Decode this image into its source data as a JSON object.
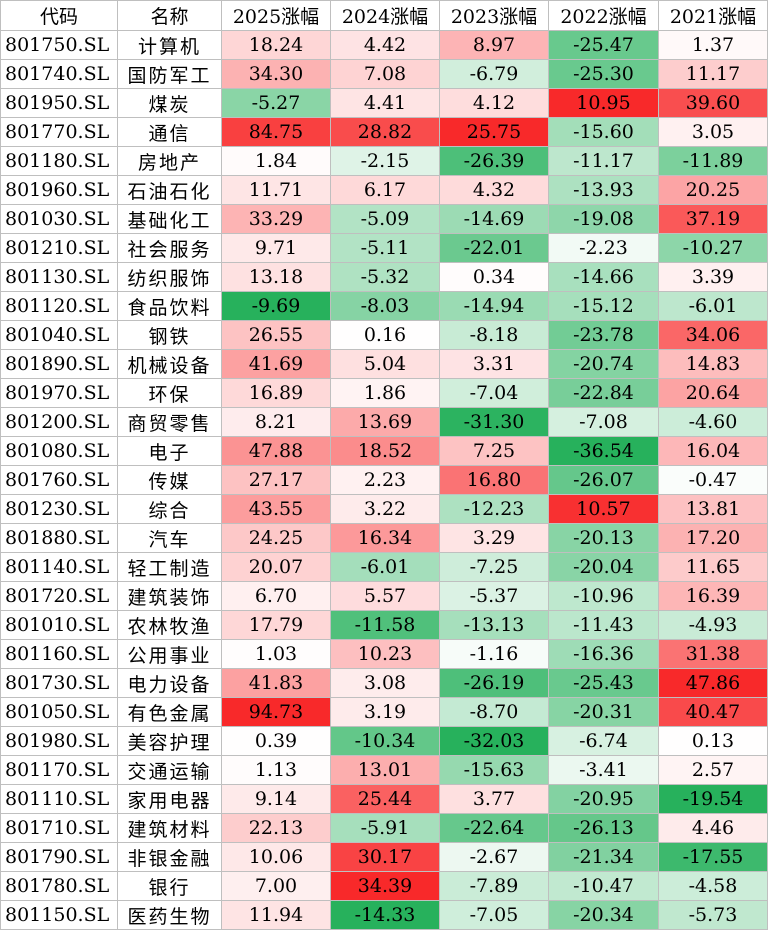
{
  "headers": [
    "代码",
    "名称",
    "2025涨幅",
    "2024涨幅",
    "2023涨幅",
    "2022涨幅",
    "2021涨幅"
  ],
  "colors": {
    "positive_max": "#f8292a",
    "negative_max": "#27b15c",
    "neutral": "#ffffff",
    "border": "#bfbfbf"
  },
  "rows": [
    {
      "code": "801750.SL",
      "name": "计算机",
      "y2025": "18.24",
      "y2024": "4.42",
      "y2023": "8.97",
      "y2022": "-25.47",
      "y2021": "1.37"
    },
    {
      "code": "801740.SL",
      "name": "国防军工",
      "y2025": "34.30",
      "y2024": "7.08",
      "y2023": "-6.79",
      "y2022": "-25.30",
      "y2021": "11.17"
    },
    {
      "code": "801950.SL",
      "name": "煤炭",
      "y2025": "-5.27",
      "y2024": "4.41",
      "y2023": "4.12",
      "y2022": "10.95",
      "y2021": "39.60"
    },
    {
      "code": "801770.SL",
      "name": "通信",
      "y2025": "84.75",
      "y2024": "28.82",
      "y2023": "25.75",
      "y2022": "-15.60",
      "y2021": "3.05"
    },
    {
      "code": "801180.SL",
      "name": "房地产",
      "y2025": "1.84",
      "y2024": "-2.15",
      "y2023": "-26.39",
      "y2022": "-11.17",
      "y2021": "-11.89"
    },
    {
      "code": "801960.SL",
      "name": "石油石化",
      "y2025": "11.71",
      "y2024": "6.17",
      "y2023": "4.32",
      "y2022": "-13.93",
      "y2021": "20.25"
    },
    {
      "code": "801030.SL",
      "name": "基础化工",
      "y2025": "33.29",
      "y2024": "-5.09",
      "y2023": "-14.69",
      "y2022": "-19.08",
      "y2021": "37.19"
    },
    {
      "code": "801210.SL",
      "name": "社会服务",
      "y2025": "9.71",
      "y2024": "-5.11",
      "y2023": "-22.01",
      "y2022": "-2.23",
      "y2021": "-10.27"
    },
    {
      "code": "801130.SL",
      "name": "纺织服饰",
      "y2025": "13.18",
      "y2024": "-5.32",
      "y2023": "0.34",
      "y2022": "-14.66",
      "y2021": "3.39"
    },
    {
      "code": "801120.SL",
      "name": "食品饮料",
      "y2025": "-9.69",
      "y2024": "-8.03",
      "y2023": "-14.94",
      "y2022": "-15.12",
      "y2021": "-6.01"
    },
    {
      "code": "801040.SL",
      "name": "钢铁",
      "y2025": "26.55",
      "y2024": "0.16",
      "y2023": "-8.18",
      "y2022": "-23.78",
      "y2021": "34.06"
    },
    {
      "code": "801890.SL",
      "name": "机械设备",
      "y2025": "41.69",
      "y2024": "5.04",
      "y2023": "3.31",
      "y2022": "-20.74",
      "y2021": "14.83"
    },
    {
      "code": "801970.SL",
      "name": "环保",
      "y2025": "16.89",
      "y2024": "1.86",
      "y2023": "-7.04",
      "y2022": "-22.84",
      "y2021": "20.64"
    },
    {
      "code": "801200.SL",
      "name": "商贸零售",
      "y2025": "8.21",
      "y2024": "13.69",
      "y2023": "-31.30",
      "y2022": "-7.08",
      "y2021": "-4.60"
    },
    {
      "code": "801080.SL",
      "name": "电子",
      "y2025": "47.88",
      "y2024": "18.52",
      "y2023": "7.25",
      "y2022": "-36.54",
      "y2021": "16.04"
    },
    {
      "code": "801760.SL",
      "name": "传媒",
      "y2025": "27.17",
      "y2024": "2.23",
      "y2023": "16.80",
      "y2022": "-26.07",
      "y2021": "-0.47"
    },
    {
      "code": "801230.SL",
      "name": "综合",
      "y2025": "43.55",
      "y2024": "3.22",
      "y2023": "-12.23",
      "y2022": "10.57",
      "y2021": "13.81"
    },
    {
      "code": "801880.SL",
      "name": "汽车",
      "y2025": "24.25",
      "y2024": "16.34",
      "y2023": "3.29",
      "y2022": "-20.13",
      "y2021": "17.20"
    },
    {
      "code": "801140.SL",
      "name": "轻工制造",
      "y2025": "20.07",
      "y2024": "-6.01",
      "y2023": "-7.25",
      "y2022": "-20.04",
      "y2021": "11.65"
    },
    {
      "code": "801720.SL",
      "name": "建筑装饰",
      "y2025": "6.70",
      "y2024": "5.57",
      "y2023": "-5.37",
      "y2022": "-10.96",
      "y2021": "16.39"
    },
    {
      "code": "801010.SL",
      "name": "农林牧渔",
      "y2025": "17.79",
      "y2024": "-11.58",
      "y2023": "-13.13",
      "y2022": "-11.43",
      "y2021": "-4.93"
    },
    {
      "code": "801160.SL",
      "name": "公用事业",
      "y2025": "1.03",
      "y2024": "10.23",
      "y2023": "-1.16",
      "y2022": "-16.36",
      "y2021": "31.38"
    },
    {
      "code": "801730.SL",
      "name": "电力设备",
      "y2025": "41.83",
      "y2024": "3.08",
      "y2023": "-26.19",
      "y2022": "-25.43",
      "y2021": "47.86"
    },
    {
      "code": "801050.SL",
      "name": "有色金属",
      "y2025": "94.73",
      "y2024": "3.19",
      "y2023": "-8.70",
      "y2022": "-20.31",
      "y2021": "40.47"
    },
    {
      "code": "801980.SL",
      "name": "美容护理",
      "y2025": "0.39",
      "y2024": "-10.34",
      "y2023": "-32.03",
      "y2022": "-6.74",
      "y2021": "0.13"
    },
    {
      "code": "801170.SL",
      "name": "交通运输",
      "y2025": "1.13",
      "y2024": "13.01",
      "y2023": "-15.63",
      "y2022": "-3.41",
      "y2021": "2.57"
    },
    {
      "code": "801110.SL",
      "name": "家用电器",
      "y2025": "9.14",
      "y2024": "25.44",
      "y2023": "3.77",
      "y2022": "-20.95",
      "y2021": "-19.54"
    },
    {
      "code": "801710.SL",
      "name": "建筑材料",
      "y2025": "22.13",
      "y2024": "-5.91",
      "y2023": "-22.64",
      "y2022": "-26.13",
      "y2021": "4.46"
    },
    {
      "code": "801790.SL",
      "name": "非银金融",
      "y2025": "10.06",
      "y2024": "30.17",
      "y2023": "-2.67",
      "y2022": "-21.34",
      "y2021": "-17.55"
    },
    {
      "code": "801780.SL",
      "name": "银行",
      "y2025": "7.00",
      "y2024": "34.39",
      "y2023": "-7.89",
      "y2022": "-10.47",
      "y2021": "-4.58"
    },
    {
      "code": "801150.SL",
      "name": "医药生物",
      "y2025": "11.94",
      "y2024": "-14.33",
      "y2023": "-7.05",
      "y2022": "-20.34",
      "y2021": "-5.73"
    }
  ]
}
